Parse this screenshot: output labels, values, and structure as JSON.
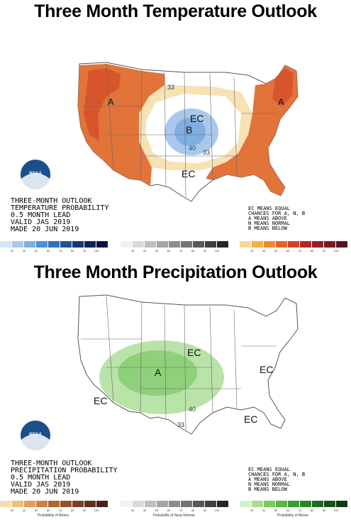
{
  "temperature": {
    "title": "Three Month Temperature Outlook",
    "legend_lines": [
      "THREE-MONTH OUTLOOK",
      "TEMPERATURE PROBABILITY",
      "0.5 MONTH LEAD",
      "VALID JAS 2019",
      "MADE 20 JUN 2019"
    ],
    "key_lines": [
      "EC MEANS EQUAL",
      "CHANCES FOR A, N, B",
      "A MEANS ABOVE",
      "N MEANS NORMAL",
      "B MEANS BELOW"
    ],
    "region_labels": {
      "ec_north": "EC",
      "ec_south": "EC",
      "below": "B",
      "above_nw": "A",
      "above_ne": "A",
      "contour_33_n": "33",
      "contour_33_s": "33",
      "contour_40": "40"
    },
    "bars": {
      "below": {
        "colors": [
          "#d6e4f5",
          "#a9c8ec",
          "#7fafe2",
          "#4c8fd6",
          "#2f6fbf",
          "#214f9a",
          "#17357a",
          "#0e2358",
          "#071440"
        ],
        "ticks": [
          "33",
          "40",
          "50",
          "60",
          "70",
          "80",
          "90",
          "100"
        ]
      },
      "normal": {
        "colors": [
          "#f2f2f2",
          "#d9d9d9",
          "#bfbfbf",
          "#a6a6a6",
          "#8c8c8c",
          "#737373",
          "#595959",
          "#404040",
          "#262626"
        ],
        "ticks": [
          "33",
          "40",
          "50",
          "60",
          "70",
          "80",
          "90",
          "100"
        ]
      },
      "above": {
        "colors": [
          "#f7d79a",
          "#f5b041",
          "#ee8a34",
          "#e2622a",
          "#cf4424",
          "#b32a25",
          "#952026",
          "#781825",
          "#5a1020"
        ],
        "ticks": [
          "33",
          "40",
          "50",
          "60",
          "70",
          "80",
          "90",
          "100"
        ]
      }
    }
  },
  "precipitation": {
    "title": "Three Month Precipitation Outlook",
    "legend_lines": [
      "THREE-MONTH OUTLOOK",
      "PRECIPITATION PROBABILITY",
      "0.5 MONTH LEAD",
      "VALID JAS 2019",
      "MADE 20 JUN 2019"
    ],
    "key_lines": [
      "EC MEANS EQUAL",
      "CHANCES FOR A, N, B",
      "A MEANS ABOVE",
      "N MEANS NORMAL",
      "B MEANS BELOW"
    ],
    "region_labels": {
      "ec_west": "EC",
      "ec_north": "EC",
      "ec_east": "EC",
      "ec_south": "EC",
      "above": "A",
      "contour_33": "33",
      "contour_40": "40"
    },
    "bars": {
      "below": {
        "label": "Probability of Below",
        "colors": [
          "#f5deb3",
          "#eec07a",
          "#dfa05a",
          "#c9813e",
          "#b0652d",
          "#96502a",
          "#7c3e25",
          "#622f1f",
          "#4a2218"
        ],
        "ticks": [
          "33",
          "40",
          "50",
          "60",
          "70",
          "80",
          "90",
          "100"
        ]
      },
      "normal": {
        "label": "Probability of Near-Normal",
        "colors": [
          "#f2f2f2",
          "#d9d9d9",
          "#bfbfbf",
          "#a6a6a6",
          "#8c8c8c",
          "#737373",
          "#595959",
          "#404040",
          "#262626"
        ],
        "ticks": [
          "33",
          "40",
          "50",
          "60",
          "70",
          "80",
          "90",
          "100"
        ]
      },
      "above": {
        "label": "Probability of Above",
        "colors": [
          "#d4efc9",
          "#a9dd92",
          "#7ccb62",
          "#55b840",
          "#3a9f2e",
          "#2a8526",
          "#1f6b20",
          "#175219",
          "#0f3a12"
        ],
        "ticks": [
          "33",
          "40",
          "50",
          "60",
          "70",
          "80",
          "90",
          "100"
        ]
      }
    }
  },
  "logo": {
    "text": "NOAA"
  }
}
